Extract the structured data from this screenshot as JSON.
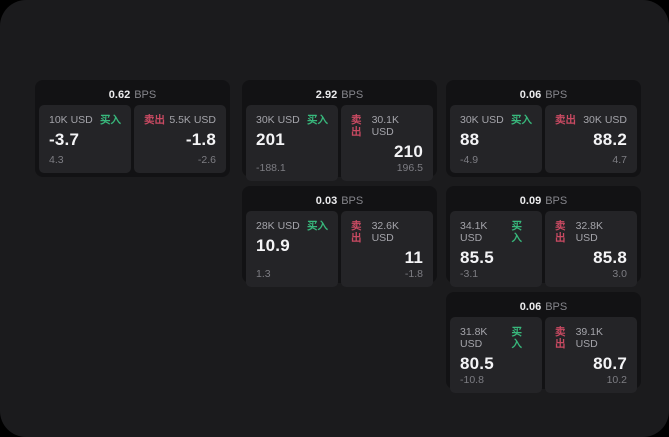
{
  "labels": {
    "bps": "BPS",
    "buy": "买入",
    "sell": "卖出"
  },
  "colors": {
    "buy": "#38b87c",
    "sell": "#c94a62",
    "page_bg": "#1b1b1d",
    "card_bg": "#121214",
    "panel_bg": "#242427"
  },
  "cards": [
    {
      "bps": "0.62",
      "buy": {
        "amount": "10K USD",
        "value": "-3.7",
        "sub": "4.3"
      },
      "sell": {
        "amount": "5.5K USD",
        "value": "-1.8",
        "sub": "-2.6"
      }
    },
    {
      "bps": "2.92",
      "buy": {
        "amount": "30K USD",
        "value": "201",
        "sub": "-188.1"
      },
      "sell": {
        "amount": "30.1K USD",
        "value": "210",
        "sub": "196.5"
      }
    },
    {
      "bps": "0.06",
      "buy": {
        "amount": "30K USD",
        "value": "88",
        "sub": "-4.9"
      },
      "sell": {
        "amount": "30K USD",
        "value": "88.2",
        "sub": "4.7"
      }
    },
    {
      "bps": "0.03",
      "buy": {
        "amount": "28K USD",
        "value": "10.9",
        "sub": "1.3"
      },
      "sell": {
        "amount": "32.6K USD",
        "value": "11",
        "sub": "-1.8"
      }
    },
    {
      "bps": "0.09",
      "buy": {
        "amount": "34.1K USD",
        "value": "85.5",
        "sub": "-3.1"
      },
      "sell": {
        "amount": "32.8K USD",
        "value": "85.8",
        "sub": "3.0"
      }
    },
    {
      "bps": "0.06",
      "buy": {
        "amount": "31.8K USD",
        "value": "80.5",
        "sub": "-10.8"
      },
      "sell": {
        "amount": "39.1K USD",
        "value": "80.7",
        "sub": "10.2"
      }
    }
  ]
}
